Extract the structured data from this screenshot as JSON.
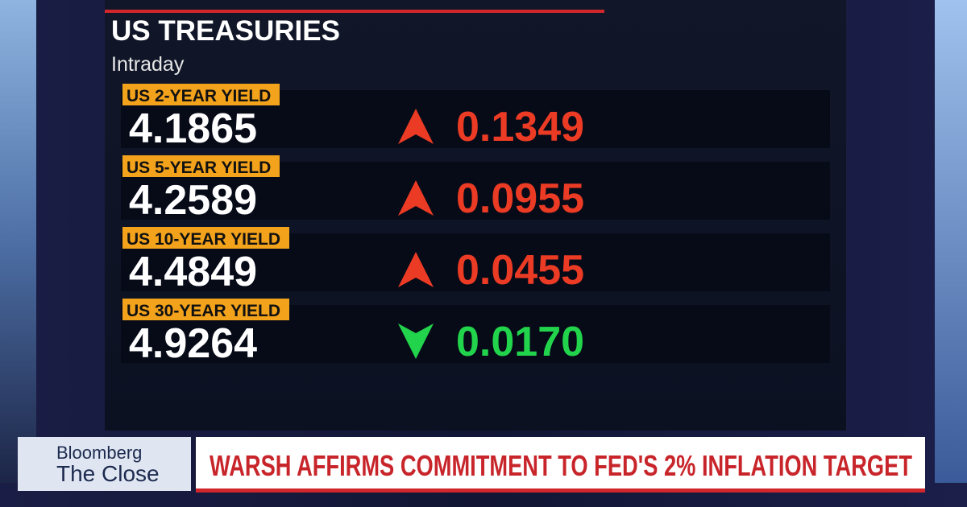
{
  "header": {
    "title": "US TREASURIES",
    "subtitle": "Intraday"
  },
  "rows": [
    {
      "label": "US 2-YEAR YIELD",
      "value": "4.1865",
      "change": "0.1349",
      "direction": "up"
    },
    {
      "label": "US 5-YEAR YIELD",
      "value": "4.2589",
      "change": "0.0955",
      "direction": "up"
    },
    {
      "label": "US 10-YEAR YIELD",
      "value": "4.4849",
      "change": "0.0455",
      "direction": "up"
    },
    {
      "label": "US 30-YEAR YIELD",
      "value": "4.9264",
      "change": "0.0170",
      "direction": "down"
    }
  ],
  "colors": {
    "up": "#ec3b24",
    "down": "#22d44c"
  },
  "lower_third": {
    "brand": "Bloomberg",
    "show": "The Close",
    "headline": "WARSH AFFIRMS COMMITMENT TO FED'S 2% INFLATION TARGET"
  }
}
